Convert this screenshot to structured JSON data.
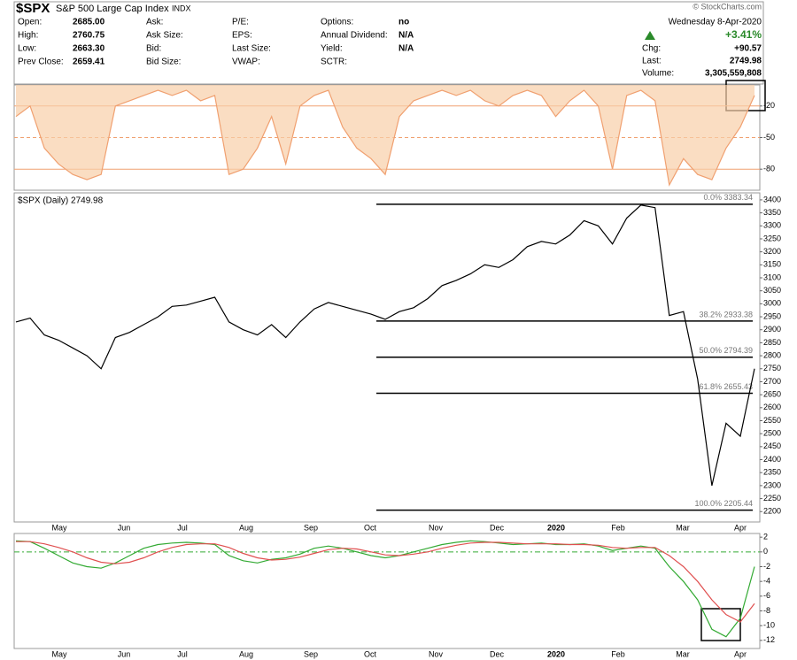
{
  "header": {
    "symbol": "$SPX",
    "name": "S&P 500 Large Cap Index",
    "exchange": "INDX",
    "credit": "© StockCharts.com",
    "date": "Wednesday  8-Apr-2020",
    "change_pct": "+3.41%",
    "columns": [
      [
        [
          "Open:",
          "2685.00"
        ],
        [
          "High:",
          "2760.75"
        ],
        [
          "Low:",
          "2663.30"
        ],
        [
          "Prev Close:",
          "2659.41"
        ]
      ],
      [
        [
          "Ask:"
        ],
        [
          "Ask Size:"
        ],
        [
          "Bid:"
        ],
        [
          "Bid Size:"
        ]
      ],
      [
        [
          "P/E:"
        ],
        [
          "EPS:"
        ],
        [
          "Last Size:"
        ],
        [
          "VWAP:"
        ]
      ],
      [
        [
          "Options:",
          "no"
        ],
        [
          "Annual Dividend:",
          "N/A"
        ],
        [
          "Yield:",
          "N/A"
        ],
        [
          "SCTR:"
        ]
      ]
    ],
    "quote": [
      [
        "Chg:",
        "+90.57"
      ],
      [
        "Last:",
        "2749.98"
      ],
      [
        "Volume:",
        "3,305,559,808"
      ]
    ]
  },
  "chart_data": [
    {
      "type": "line",
      "ylim": [
        -100,
        0
      ],
      "yticks": [
        -20,
        -50,
        -80
      ],
      "grid": true,
      "grid_color": "#f0a070",
      "fill": "#f8cfa8",
      "series": [
        {
          "color": "#f0a070",
          "values": [
            -30,
            -20,
            -60,
            -75,
            -85,
            -90,
            -85,
            -20,
            -15,
            -10,
            -5,
            -10,
            -5,
            -15,
            -10,
            -85,
            -80,
            -60,
            -30,
            -75,
            -20,
            -10,
            -5,
            -40,
            -60,
            -70,
            -85,
            -30,
            -15,
            -10,
            -5,
            -10,
            -5,
            -15,
            -20,
            -10,
            -5,
            -10,
            -30,
            -15,
            -5,
            -20,
            -80,
            -10,
            -5,
            -15,
            -95,
            -70,
            -85,
            -90,
            -60,
            -40,
            -10
          ]
        }
      ]
    },
    {
      "type": "line",
      "legend": "$SPX (Daily) 2749.98",
      "ylim": [
        2160,
        3427
      ],
      "yticks": [
        2200,
        2250,
        2300,
        2350,
        2400,
        2450,
        2500,
        2550,
        2600,
        2650,
        2700,
        2750,
        2800,
        2850,
        2900,
        2950,
        3000,
        3050,
        3100,
        3150,
        3200,
        3250,
        3300,
        3350,
        3400
      ],
      "grid": false,
      "x_labels": [
        "May",
        "Jun",
        "Jul",
        "Aug",
        "Sep",
        "Oct",
        "Nov",
        "Dec",
        "2020",
        "Feb",
        "Mar",
        "Apr"
      ],
      "levels": [
        {
          "value": 3383.34,
          "label": "0.0% 3383.34"
        },
        {
          "value": 2933.38,
          "label": "38.2% 2933.38"
        },
        {
          "value": 2794.39,
          "label": "50.0% 2794.39"
        },
        {
          "value": 2655.43,
          "label": "61.8% 2655.43"
        },
        {
          "value": 2205.44,
          "label": "100.0% 2205.44"
        }
      ],
      "series": [
        {
          "color": "#000000",
          "values": [
            2930,
            2945,
            2880,
            2860,
            2830,
            2800,
            2750,
            2870,
            2890,
            2920,
            2950,
            2990,
            2995,
            3010,
            3025,
            2930,
            2900,
            2880,
            2920,
            2870,
            2930,
            2980,
            3005,
            2990,
            2975,
            2960,
            2940,
            2970,
            2985,
            3020,
            3070,
            3090,
            3115,
            3150,
            3140,
            3170,
            3220,
            3240,
            3230,
            3265,
            3320,
            3300,
            3230,
            3330,
            3380,
            3370,
            2955,
            2970,
            2710,
            2300,
            2540,
            2490,
            2750
          ]
        }
      ]
    },
    {
      "type": "line",
      "ylim": [
        -13.1,
        2.5
      ],
      "yticks": [
        2,
        0,
        -2,
        -4,
        -6,
        -8,
        -10,
        -12
      ],
      "grid": false,
      "zero_color": "#33aa33",
      "x_labels": [
        "May",
        "Jun",
        "Jul",
        "Aug",
        "Sep",
        "Oct",
        "Nov",
        "Dec",
        "2020",
        "Feb",
        "Mar",
        "Apr"
      ],
      "series": [
        {
          "color": "#33aa33",
          "values": [
            1.5,
            1.4,
            0.5,
            -0.5,
            -1.5,
            -2,
            -2.2,
            -1.5,
            -0.5,
            0.5,
            1,
            1.2,
            1.3,
            1.2,
            1,
            -0.5,
            -1.2,
            -1.5,
            -1,
            -0.8,
            -0.3,
            0.5,
            0.8,
            0.5,
            0,
            -0.5,
            -0.8,
            -0.5,
            0,
            0.5,
            1,
            1.3,
            1.5,
            1.4,
            1.2,
            1,
            1.1,
            1.2,
            1,
            1,
            1.1,
            0.8,
            0.2,
            0.5,
            0.8,
            0.5,
            -2,
            -4,
            -6.5,
            -10.5,
            -11.5,
            -9,
            -2
          ]
        },
        {
          "color": "#e05050",
          "values": [
            1.4,
            1.4,
            1.1,
            0.6,
            0,
            -0.8,
            -1.4,
            -1.6,
            -1.4,
            -0.8,
            0,
            0.6,
            1,
            1.1,
            1.1,
            0.6,
            -0.2,
            -0.8,
            -1.1,
            -1,
            -0.7,
            -0.2,
            0.3,
            0.5,
            0.4,
            0,
            -0.4,
            -0.5,
            -0.3,
            0,
            0.5,
            0.9,
            1.2,
            1.3,
            1.3,
            1.2,
            1.1,
            1.1,
            1.1,
            1,
            1,
            0.9,
            0.6,
            0.5,
            0.6,
            0.6,
            -0.5,
            -2,
            -4,
            -6.5,
            -8.5,
            -9.5,
            -7
          ]
        }
      ]
    }
  ]
}
